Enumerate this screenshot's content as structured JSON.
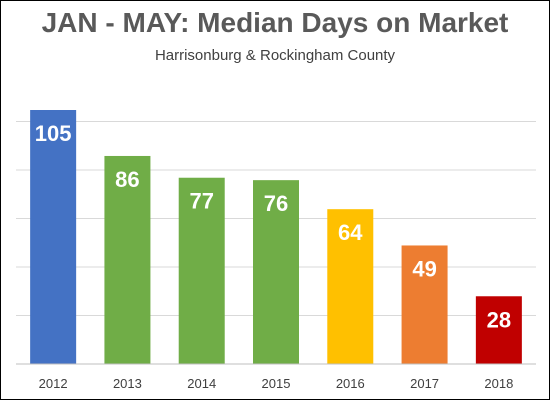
{
  "chart_data": {
    "type": "bar",
    "title": "JAN - MAY: Median Days on Market",
    "subtitle": "Harrisonburg & Rockingham County",
    "categories": [
      "2012",
      "2013",
      "2014",
      "2015",
      "2016",
      "2017",
      "2018"
    ],
    "values": [
      105,
      86,
      77,
      76,
      64,
      49,
      28
    ],
    "colors": [
      "#4472c4",
      "#70ad47",
      "#70ad47",
      "#70ad47",
      "#ffc000",
      "#ed7d31",
      "#c00000"
    ],
    "ylim": [
      0,
      105
    ],
    "grid": true,
    "legend": "none",
    "data_labels": true
  }
}
